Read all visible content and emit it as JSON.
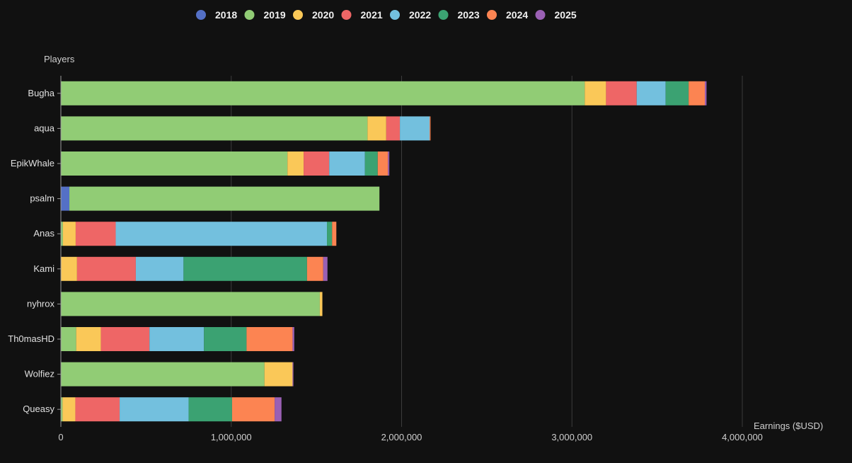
{
  "chart_data": {
    "type": "bar",
    "orientation": "horizontal",
    "stacked": true,
    "ylabel": "Players",
    "xlabel": "Earnings ($USD)",
    "xlim": [
      0,
      4000000
    ],
    "xticks": [
      "0",
      "1,000,000",
      "2,000,000",
      "3,000,000",
      "4,000,000"
    ],
    "xtick_values": [
      0,
      1000000,
      2000000,
      3000000,
      4000000
    ],
    "grid": "vertical",
    "legend_position": "top",
    "categories": [
      "Bugha",
      "aqua",
      "EpikWhale",
      "psalm",
      "Anas",
      "Kami",
      "nyhrox",
      "Th0masHD",
      "Wolfiez",
      "Queasy"
    ],
    "series": [
      {
        "name": "2018",
        "color": "#5470c6",
        "values": [
          0,
          0,
          0,
          50000,
          0,
          0,
          0,
          0,
          0,
          0
        ]
      },
      {
        "name": "2019",
        "color": "#91cc75",
        "values": [
          3075000,
          1800000,
          1330000,
          1820000,
          12000,
          0,
          1520000,
          90000,
          1195000,
          10000
        ]
      },
      {
        "name": "2020",
        "color": "#fac858",
        "values": [
          125000,
          110000,
          95000,
          0,
          75000,
          95000,
          15000,
          145000,
          165000,
          75000
        ]
      },
      {
        "name": "2021",
        "color": "#ee6666",
        "values": [
          180000,
          80000,
          150000,
          0,
          235000,
          345000,
          0,
          285000,
          0,
          260000
        ]
      },
      {
        "name": "2022",
        "color": "#73c0de",
        "values": [
          170000,
          175000,
          210000,
          0,
          1240000,
          280000,
          0,
          320000,
          0,
          405000
        ]
      },
      {
        "name": "2023",
        "color": "#3ba272",
        "values": [
          135000,
          0,
          75000,
          0,
          30000,
          725000,
          0,
          250000,
          0,
          255000
        ]
      },
      {
        "name": "2024",
        "color": "#fc8452",
        "values": [
          95000,
          5000,
          60000,
          0,
          25000,
          95000,
          0,
          270000,
          0,
          250000
        ]
      },
      {
        "name": "2025",
        "color": "#9a60b4",
        "values": [
          10000,
          0,
          8000,
          0,
          0,
          25000,
          0,
          10000,
          5000,
          40000
        ]
      }
    ]
  }
}
